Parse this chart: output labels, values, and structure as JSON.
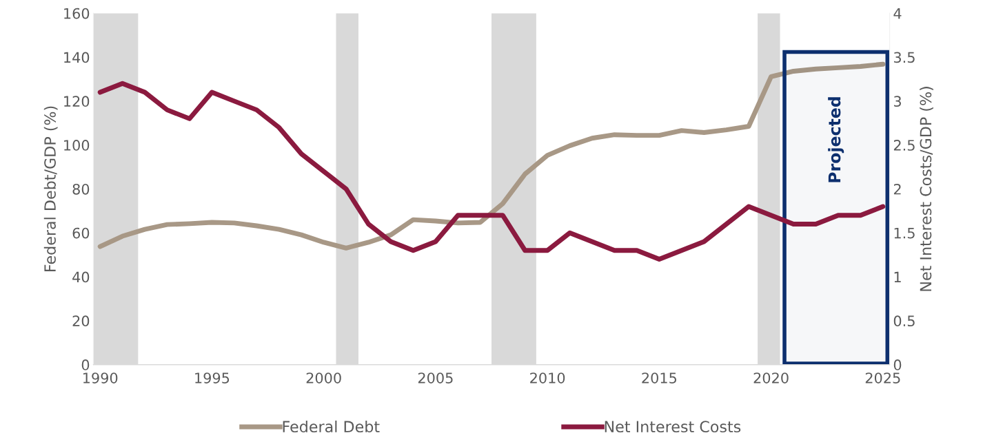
{
  "chart_data": {
    "type": "line",
    "ylabel": "Federal Debt/GDP (%)",
    "y2label": "Net Interest Costs/GDP (%)",
    "x": [
      1990,
      1991,
      1992,
      1993,
      1994,
      1995,
      1996,
      1997,
      1998,
      1999,
      2000,
      2001,
      2002,
      2003,
      2004,
      2005,
      2006,
      2007,
      2008,
      2009,
      2010,
      2011,
      2012,
      2013,
      2014,
      2015,
      2016,
      2017,
      2018,
      2019,
      2020,
      2021,
      2022,
      2023,
      2024,
      2025
    ],
    "series": [
      {
        "name": "Federal Debt",
        "color": "#a89886",
        "values": [
          53.8,
          58.5,
          61.6,
          63.8,
          64.2,
          64.8,
          64.5,
          63.2,
          61.6,
          59.1,
          55.7,
          53.1,
          55.7,
          59.1,
          66.0,
          65.4,
          64.5,
          64.8,
          73.3,
          86.8,
          95.3,
          99.7,
          103.1,
          104.7,
          104.4,
          104.4,
          106.6,
          105.7,
          106.9,
          108.5,
          131.1,
          133.6,
          134.6,
          135.2,
          135.8,
          136.8
        ]
      },
      {
        "name": "Net Interest Costs",
        "color": "#8b1a3f",
        "axis": "y2",
        "values": [
          3.1,
          3.2,
          3.1,
          2.9,
          2.8,
          3.1,
          3.0,
          2.9,
          2.7,
          2.4,
          2.2,
          2.0,
          1.6,
          1.4,
          1.3,
          1.4,
          1.7,
          1.7,
          1.7,
          1.3,
          1.3,
          1.5,
          1.4,
          1.3,
          1.3,
          1.2,
          1.3,
          1.4,
          1.6,
          1.8,
          1.7,
          1.6,
          1.6,
          1.7,
          1.7,
          1.8
        ]
      }
    ],
    "xlim": [
      1989.7,
      2025.3
    ],
    "xticks": [
      1990,
      1995,
      2000,
      2005,
      2010,
      2015,
      2020,
      2025
    ],
    "ylim": [
      0,
      160
    ],
    "yticks": [
      0,
      20,
      40,
      60,
      80,
      100,
      120,
      140,
      160
    ],
    "y2lim": [
      0,
      4
    ],
    "y2ticks": [
      0,
      0.5,
      1,
      1.5,
      2,
      2.5,
      3,
      3.5,
      4
    ],
    "bands": [
      {
        "axis": "x",
        "from": 1989.7,
        "to": 1991.7,
        "color": "#d9d9d9"
      },
      {
        "axis": "x",
        "from": 2000.55,
        "to": 2001.55,
        "color": "#d9d9d9"
      },
      {
        "axis": "x",
        "from": 2007.5,
        "to": 2009.5,
        "color": "#d9d9d9"
      },
      {
        "axis": "x",
        "from": 2019.4,
        "to": 2020.4,
        "color": "#d9d9d9"
      },
      {
        "axis": "x",
        "from": 2020.6,
        "to": 2025.2,
        "label": "Projected",
        "color": "#0d2f6e"
      }
    ],
    "grid": false,
    "legend": "bottom",
    "marker": "none",
    "line_style": "solid"
  }
}
